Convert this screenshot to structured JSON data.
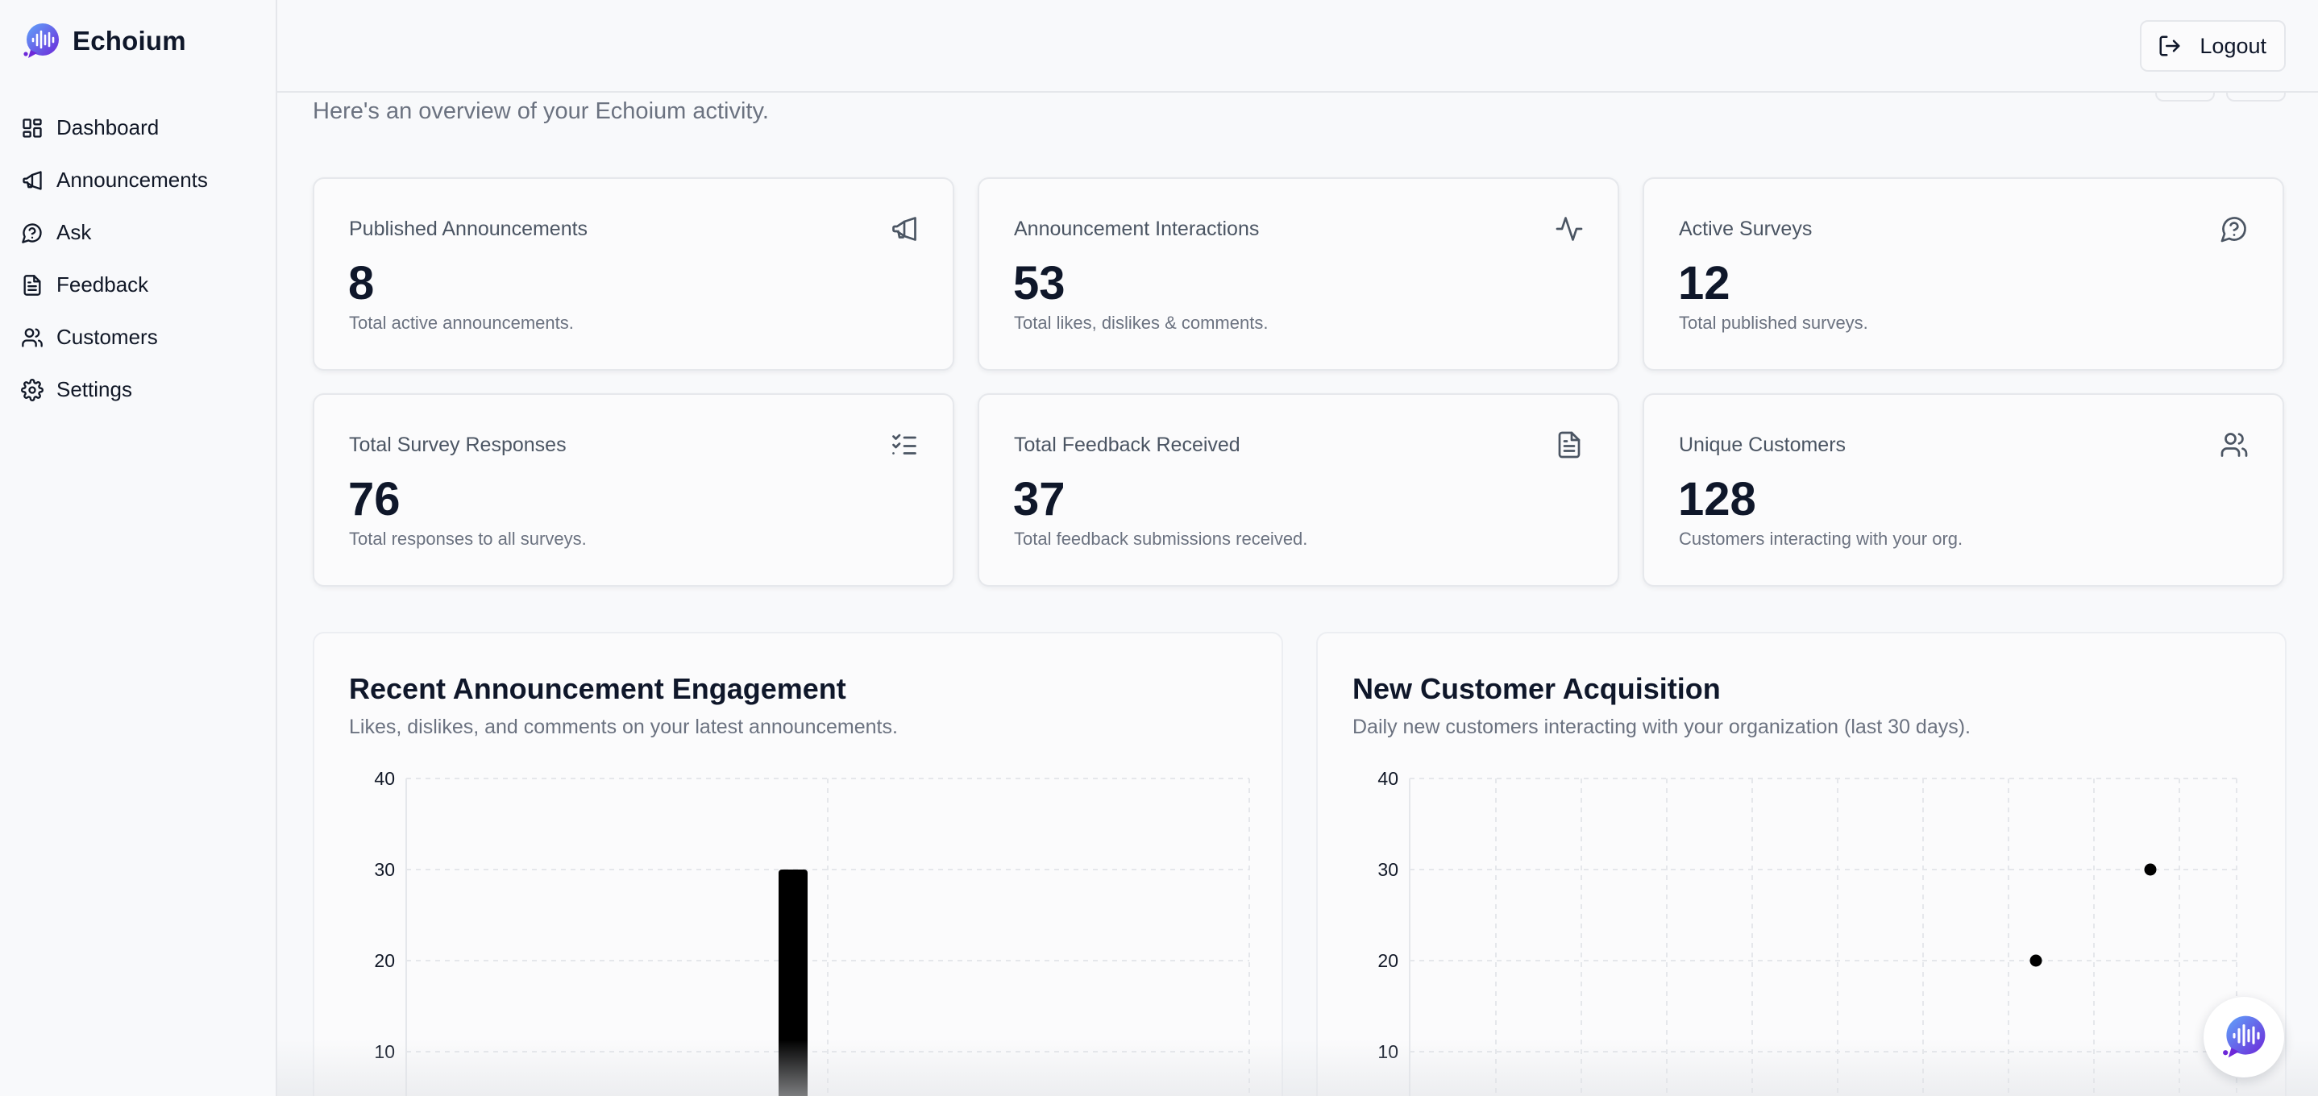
{
  "brand": {
    "name": "Echoium",
    "logo_icon": "echoium-logo-icon"
  },
  "sidebar": {
    "items": [
      {
        "label": "Dashboard",
        "icon": "dashboard-grid-icon"
      },
      {
        "label": "Announcements",
        "icon": "megaphone-icon"
      },
      {
        "label": "Ask",
        "icon": "message-question-icon"
      },
      {
        "label": "Feedback",
        "icon": "document-icon"
      },
      {
        "label": "Customers",
        "icon": "users-icon"
      },
      {
        "label": "Settings",
        "icon": "gear-icon"
      }
    ]
  },
  "header": {
    "logout_label": "Logout",
    "logout_icon": "logout-icon"
  },
  "main": {
    "overview_text": "Here's an overview of your Echoium activity.",
    "stats": [
      {
        "title": "Published Announcements",
        "value": "8",
        "subtitle": "Total active announcements.",
        "icon": "megaphone-icon"
      },
      {
        "title": "Announcement Interactions",
        "value": "53",
        "subtitle": "Total likes, dislikes & comments.",
        "icon": "activity-icon"
      },
      {
        "title": "Active Surveys",
        "value": "12",
        "subtitle": "Total published surveys.",
        "icon": "message-question-icon"
      },
      {
        "title": "Total Survey Responses",
        "value": "76",
        "subtitle": "Total responses to all surveys.",
        "icon": "checklist-icon"
      },
      {
        "title": "Total Feedback Received",
        "value": "37",
        "subtitle": "Total feedback submissions received.",
        "icon": "document-icon"
      },
      {
        "title": "Unique Customers",
        "value": "128",
        "subtitle": "Customers interacting with your org.",
        "icon": "users-icon"
      }
    ]
  },
  "charts": {
    "engagement": {
      "title": "Recent Announcement Engagement",
      "subtitle": "Likes, dislikes, and comments on your latest announcements."
    },
    "acquisition": {
      "title": "New Customer Acquisition",
      "subtitle": "Daily new customers interacting with your organization (last 30 days)."
    }
  },
  "chart_data": [
    {
      "type": "bar",
      "title": "Recent Announcement Engagement",
      "yticks": [
        10,
        20,
        30,
        40
      ],
      "ylim": [
        0,
        40
      ],
      "grid": true,
      "visible_bars": [
        {
          "value": 30,
          "color": "#000000"
        }
      ]
    },
    {
      "type": "scatter",
      "title": "New Customer Acquisition",
      "yticks": [
        10,
        20,
        30,
        40
      ],
      "ylim": [
        0,
        40
      ],
      "grid": true,
      "points": [
        {
          "y": 20,
          "color": "#000000"
        },
        {
          "y": 30,
          "color": "#000000"
        }
      ]
    }
  ],
  "colors": {
    "accent": "#4f46e5",
    "text": "#0f172a",
    "muted": "#6b7280",
    "border": "#e5e7eb"
  },
  "floating_button": {
    "icon": "echoium-chat-icon"
  }
}
